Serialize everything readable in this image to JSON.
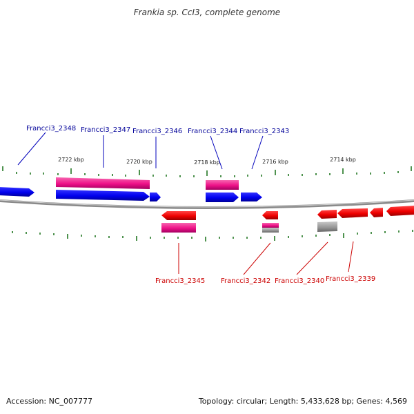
{
  "title": "Frankia sp. CcI3, complete genome",
  "accession": "Accession: NC_007777",
  "topology": "Topology: circular; Length: 5,433,628 bp; Genes: 4,569",
  "colors": {
    "forward_cds": "#0000ee",
    "forward_rna": "#ee1188",
    "reverse_cds": "#ee0000",
    "reverse_rna": "#ee1188",
    "pseudo": "#999999",
    "backbone": "#888888",
    "tick": "#227722",
    "forward_label": "#000099",
    "reverse_label": "#cc0000"
  },
  "scale_labels": [
    "2722 kbp",
    "2720 kbp",
    "2718 kbp",
    "2716 kbp",
    "2714 kbp"
  ],
  "forward_labels": [
    "Francci3_2348",
    "Francci3_2347",
    "Francci3_2346",
    "Francci3_2344",
    "Francci3_2343"
  ],
  "reverse_labels": [
    "Francci3_2345",
    "Francci3_2342",
    "Francci3_2340",
    "Francci3_2339"
  ]
}
